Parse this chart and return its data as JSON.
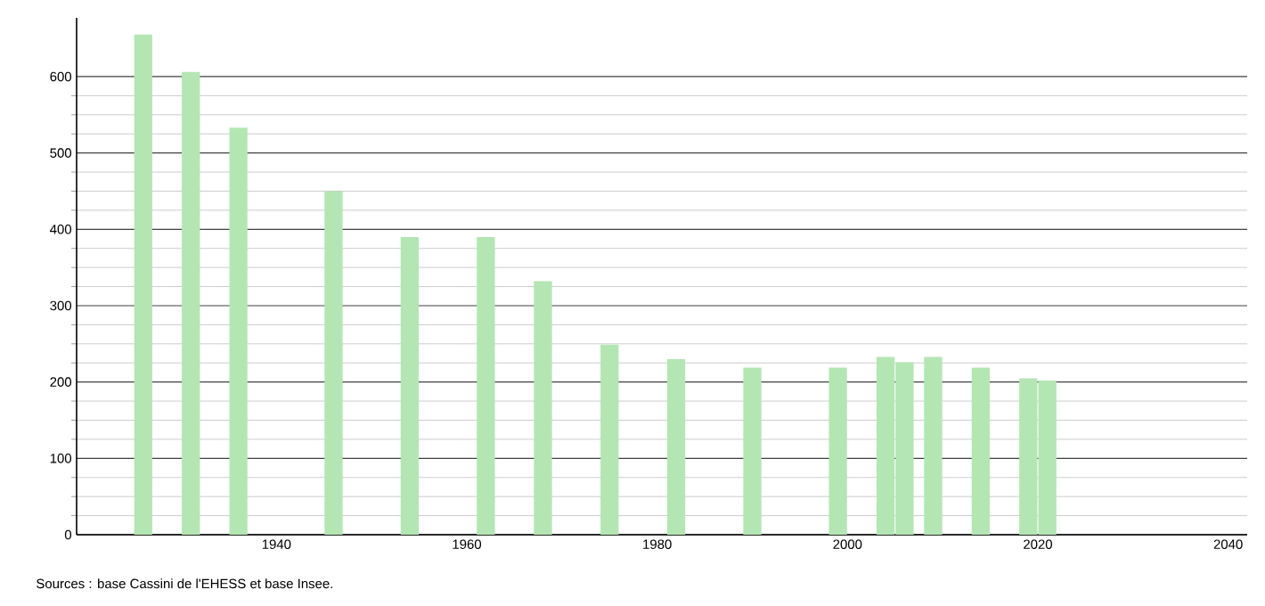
{
  "chart_data": {
    "type": "bar",
    "x": [
      1926,
      1931,
      1936,
      1946,
      1954,
      1962,
      1968,
      1975,
      1982,
      1990,
      1999,
      2004,
      2006,
      2009,
      2014,
      2019,
      2021
    ],
    "values": [
      655,
      606,
      533,
      450,
      390,
      390,
      332,
      249,
      230,
      219,
      219,
      233,
      226,
      233,
      219,
      205,
      202
    ],
    "color": "#b3e6b3",
    "xlim": [
      1919,
      2042
    ],
    "xticks": [
      1940,
      1960,
      1980,
      2000,
      2020,
      2040
    ],
    "ylim": [
      0,
      677
    ],
    "yticks": [
      0,
      100,
      200,
      300,
      400,
      500,
      600
    ],
    "grid": "y",
    "annotations": [
      "Sources : base Cassini de l'EHESS et base Insee."
    ]
  }
}
